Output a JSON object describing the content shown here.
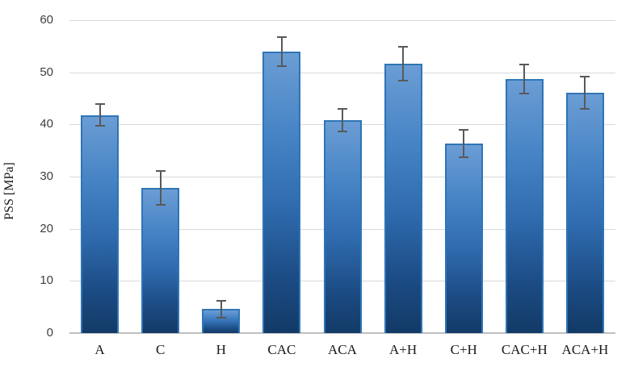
{
  "chart_data": {
    "type": "bar",
    "title": "",
    "xlabel": "",
    "ylabel": "PSS [MPa]",
    "categories": [
      "A",
      "C",
      "H",
      "CAC",
      "ACA",
      "A+H",
      "C+H",
      "CAC+H",
      "ACA+H"
    ],
    "values": [
      41.8,
      27.9,
      4.6,
      54.0,
      40.8,
      51.7,
      36.3,
      48.7,
      46.1
    ],
    "errors": [
      2.2,
      3.4,
      1.8,
      2.9,
      2.3,
      3.4,
      2.8,
      3.0,
      3.2
    ],
    "ylim": [
      0,
      60
    ],
    "yticks": [
      0,
      10,
      20,
      30,
      40,
      50,
      60
    ],
    "grid": true,
    "legend": "none",
    "colors": {
      "bar_gradient_top": "#6b9dd4",
      "bar_gradient_bottom": "#123a66",
      "bar_border": "#2e75b6",
      "error_bar": "#595959",
      "gridline": "#d9d9d9",
      "axis_line": "#bfbfbf",
      "tick_text": "#404040",
      "label_text": "#1a1a1a"
    }
  }
}
